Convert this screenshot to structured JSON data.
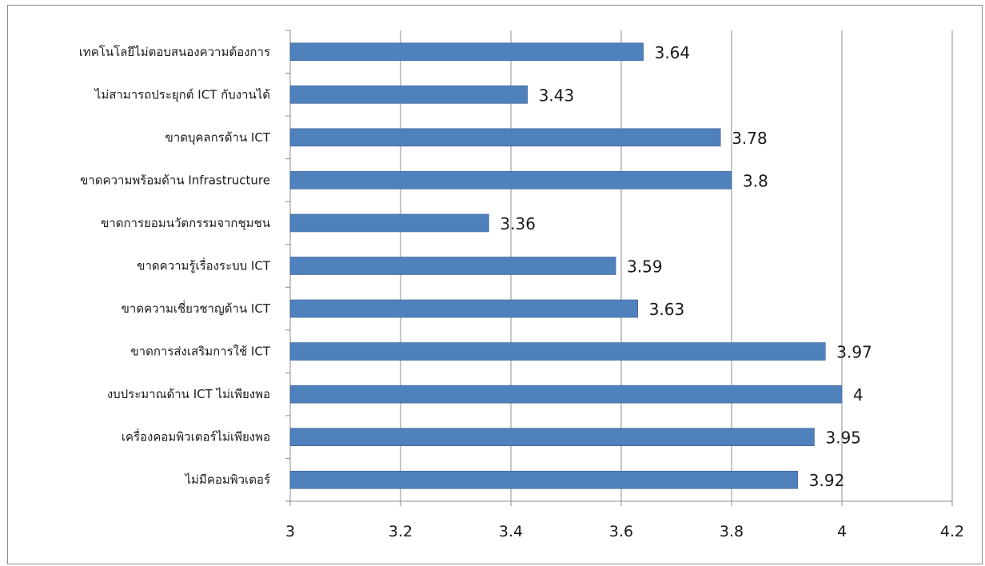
{
  "chart_data": {
    "type": "bar",
    "orientation": "horizontal",
    "categories": [
      "เทคโนโลยีไม่ตอบสนองความต้องการ",
      "ไม่สามารถประยุกต์ ICT กับงานได้",
      "ขาดบุคลกรด้าน ICT",
      "ขาดความพร้อมด้าน Infrastructure",
      "ขาดการยอมนวัตกรรมจากชุมชน",
      "ขาดความรู้เรื่องระบบ ICT",
      "ขาดความเชี่ยวชาญด้าน ICT",
      "ขาดการส่งเสริมการใช้ ICT",
      "งบประมาณด้าน ICT ไม่เพียงพอ",
      "เครื่องคอมพิวเตอร์ไม่เพียงพอ",
      "ไม่มีคอมพิวเตอร์"
    ],
    "values": [
      3.64,
      3.43,
      3.78,
      3.8,
      3.36,
      3.59,
      3.63,
      3.97,
      4,
      3.95,
      3.92
    ],
    "data_labels": [
      "3.64",
      "3.43",
      "3.78",
      "3.8",
      "3.36",
      "3.59",
      "3.63",
      "3.97",
      "4",
      "3.95",
      "3.92"
    ],
    "xlim": [
      3,
      4.2
    ],
    "x_ticks": [
      3,
      3.2,
      3.4,
      3.6,
      3.8,
      4,
      4.2
    ],
    "x_tick_labels": [
      "3",
      "3.2",
      "3.4",
      "3.6",
      "3.8",
      "4",
      "4.2"
    ],
    "grid": "vertical",
    "legend": "none",
    "colors": {
      "bar": "#4f81bd",
      "bar_edge": "#385d8a",
      "grid": "#8c8c8c",
      "axis": "#8c8c8c",
      "text": "#1a1a1a"
    }
  }
}
